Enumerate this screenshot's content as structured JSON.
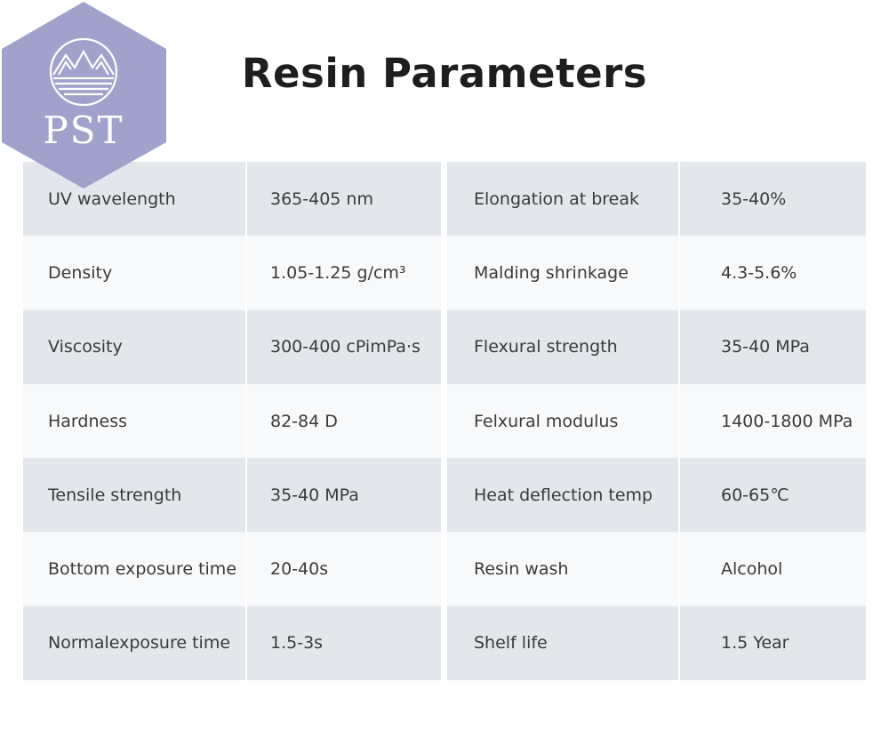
{
  "logo": {
    "text": "PST",
    "color": "#9b9dc9"
  },
  "title": "Resin Parameters",
  "colors": {
    "row_dark": "#e3e6ea",
    "row_light": "#f8f9fa",
    "text": "#3a3a3a",
    "title": "#1e1e1e"
  },
  "table_left": [
    {
      "label": "UV wavelength",
      "value": "365-405 nm"
    },
    {
      "label": "Density",
      "value": "1.05-1.25 g/cm³"
    },
    {
      "label": "Viscosity",
      "value": "300-400 cPimPa·s"
    },
    {
      "label": "Hardness",
      "value": "82-84 D"
    },
    {
      "label": "Tensile strength",
      "value": "35-40 MPa"
    },
    {
      "label": "Bottom exposure time",
      "value": "20-40s"
    },
    {
      "label": "Normalexposure time",
      "value": "1.5-3s"
    }
  ],
  "table_right": [
    {
      "label": "Elongation at break",
      "value": "35-40%"
    },
    {
      "label": "Malding shrinkage",
      "value": "4.3-5.6%"
    },
    {
      "label": "Flexural strength",
      "value": "35-40 MPa"
    },
    {
      "label": "Felxural modulus",
      "value": "1400-1800 MPa"
    },
    {
      "label": "Heat deflection temp",
      "value": "60-65℃"
    },
    {
      "label": "Resin wash",
      "value": "Alcohol"
    },
    {
      "label": "Shelf life",
      "value": "1.5 Year"
    }
  ]
}
